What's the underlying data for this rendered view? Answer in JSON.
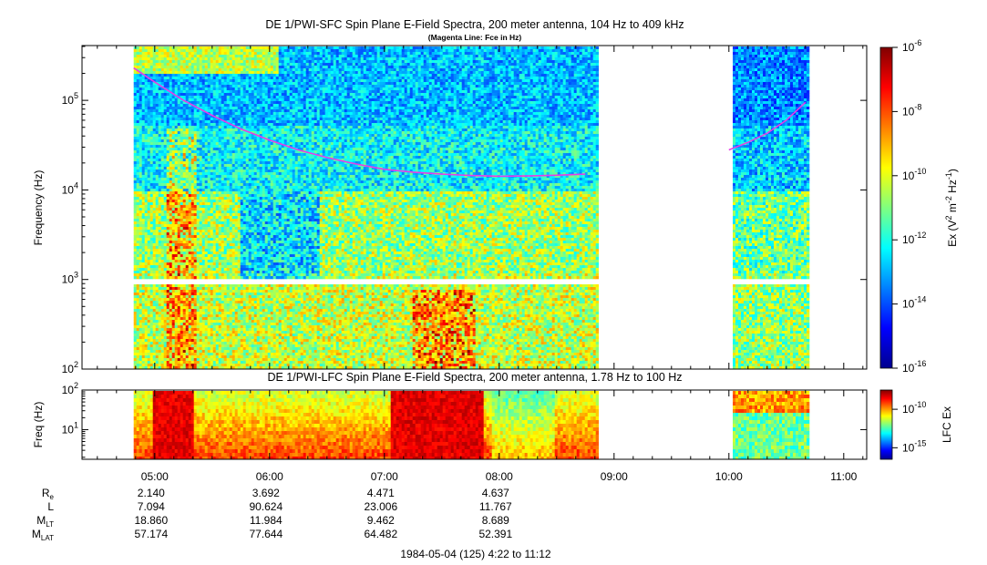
{
  "chart_data": [
    {
      "type": "heatmap",
      "title": "DE 1/PWI-SFC  Spin Plane E-Field Spectra, 200 meter antenna, 104 Hz to 409 kHz",
      "subtitle": "(Magenta Line: Fce in Hz)",
      "ylabel": "Frequency (Hz)",
      "yscale": "log",
      "ylim": [
        100,
        409000
      ],
      "y_ticks": [
        {
          "value": 100,
          "base": "10",
          "exp": "2"
        },
        {
          "value": 1000,
          "base": "10",
          "exp": "3"
        },
        {
          "value": 10000,
          "base": "10",
          "exp": "4"
        },
        {
          "value": 100000,
          "base": "10",
          "exp": "5"
        }
      ],
      "colorbar": {
        "label_parts": [
          "Ex (V",
          "2",
          " m",
          "-2",
          " Hz",
          "-1",
          ")"
        ],
        "scale": "log",
        "range": [
          1e-16,
          1e-06
        ],
        "ticks": [
          {
            "value": 1e-06,
            "base": "10",
            "exp": "-6"
          },
          {
            "value": 1e-08,
            "base": "10",
            "exp": "-8"
          },
          {
            "value": 1e-10,
            "base": "10",
            "exp": "-10"
          },
          {
            "value": 1e-12,
            "base": "10",
            "exp": "-12"
          },
          {
            "value": 1e-14,
            "base": "10",
            "exp": "-14"
          },
          {
            "value": 1e-16,
            "base": "10",
            "exp": "-16"
          }
        ]
      },
      "fce_line": {
        "color": "#e83ce8",
        "segments": [
          {
            "time": [
              "04:49",
              "05:00",
              "05:15",
              "05:30",
              "05:45",
              "06:00",
              "06:15",
              "06:30",
              "06:45",
              "07:00",
              "07:15",
              "07:30",
              "07:45",
              "08:00",
              "08:15",
              "08:30",
              "08:45"
            ],
            "values": [
              230000,
              160000,
              100000,
              68000,
              48000,
              36000,
              28000,
              23000,
              19500,
              17000,
              15800,
              15000,
              14500,
              14200,
              14300,
              14600,
              15000
            ]
          },
          {
            "time": [
              "10:00",
              "10:10",
              "10:20",
              "10:30",
              "10:40"
            ],
            "values": [
              28000,
              34000,
              43000,
              60000,
              95000
            ]
          }
        ]
      }
    },
    {
      "type": "heatmap",
      "title": "DE 1/PWI-LFC  Spin Plane E-Field Spectra, 200 meter antenna, 1.78 Hz to 100 Hz",
      "ylabel": "Freq (Hz)",
      "yscale": "log",
      "ylim": [
        1.78,
        100
      ],
      "y_ticks": [
        {
          "value": 10,
          "base": "10",
          "exp": "1"
        },
        {
          "value": 100,
          "base": "10",
          "exp": "2"
        }
      ],
      "colorbar": {
        "label": "LFC Ex",
        "scale": "log",
        "ticks": [
          {
            "value": 1e-10,
            "base": "10",
            "exp": "-10"
          },
          {
            "value": 1e-15,
            "base": "10",
            "exp": "-15"
          }
        ]
      }
    }
  ],
  "x_axis": {
    "start": "04:22",
    "end": "11:12",
    "ticks": [
      "05:00",
      "06:00",
      "07:00",
      "08:00",
      "09:00",
      "10:00",
      "11:00"
    ]
  },
  "data_coverage": [
    [
      "04:49",
      "08:51"
    ],
    [
      "10:02",
      "10:41"
    ]
  ],
  "ephemeris": {
    "rows": [
      {
        "label": "R",
        "sub": "e",
        "values": [
          "2.140",
          "3.692",
          "4.471",
          "4.637"
        ]
      },
      {
        "label": "L",
        "sub": "",
        "values": [
          "7.094",
          "90.624",
          "23.006",
          "11.767"
        ]
      },
      {
        "label": "M",
        "sub": "LT",
        "values": [
          "18.860",
          "11.984",
          "9.462",
          "8.689"
        ]
      },
      {
        "label": "M",
        "sub": "LAT",
        "values": [
          "57.174",
          "77.644",
          "64.482",
          "52.391"
        ]
      }
    ]
  },
  "footer": "1984-05-04 (125) 4:22 to 11:12"
}
